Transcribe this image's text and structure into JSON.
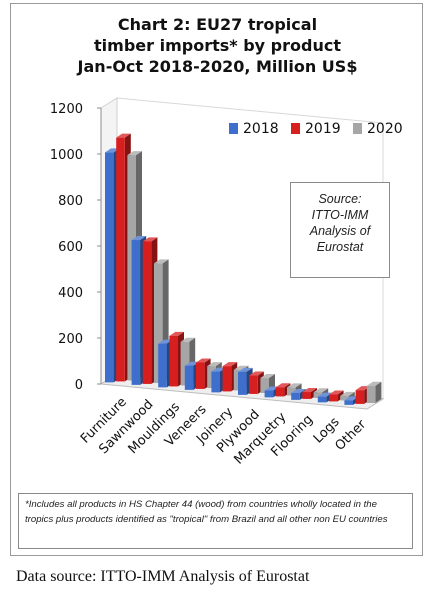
{
  "title_lines": [
    "Chart 2: EU27 tropical",
    "timber imports* by product",
    "Jan-Oct 2018-2020, Million US$"
  ],
  "source_note_lines": [
    "Source:",
    "ITTO-IMM",
    "Analysis of",
    "Eurostat"
  ],
  "footnote": "*Includes all products in HS Chapter 44 (wood) from countries wholly located in the tropics plus products identified as \"tropical\" from Brazil and all other non EU countries",
  "data_source": "Data source: ITTO-IMM Analysis of Eurostat",
  "colors": {
    "2018": "#3f6fcc",
    "2019": "#d81f1f",
    "2020": "#a6a6a6"
  },
  "chart_data": {
    "type": "bar",
    "title": "Chart 2: EU27 tropical timber imports* by product Jan-Oct 2018-2020, Million US$",
    "categories": [
      "Furniture",
      "Sawnwood",
      "Mouldings",
      "Veneers",
      "Joinery",
      "Plywood",
      "Marquetry",
      "Flooring",
      "Logs",
      "Other"
    ],
    "series": [
      {
        "name": "2018",
        "values": [
          1000,
          630,
          190,
          105,
          90,
          100,
          30,
          30,
          25,
          20
        ]
      },
      {
        "name": "2019",
        "values": [
          1060,
          620,
          220,
          115,
          110,
          80,
          40,
          30,
          30,
          60
        ]
      },
      {
        "name": "2020",
        "values": [
          980,
          520,
          190,
          95,
          90,
          65,
          35,
          25,
          20,
          75
        ]
      }
    ],
    "yticks": [
      0,
      200,
      400,
      600,
      800,
      1000,
      1200
    ],
    "ylim": [
      0,
      1200
    ],
    "legend_position": "top-right",
    "grid": false
  }
}
